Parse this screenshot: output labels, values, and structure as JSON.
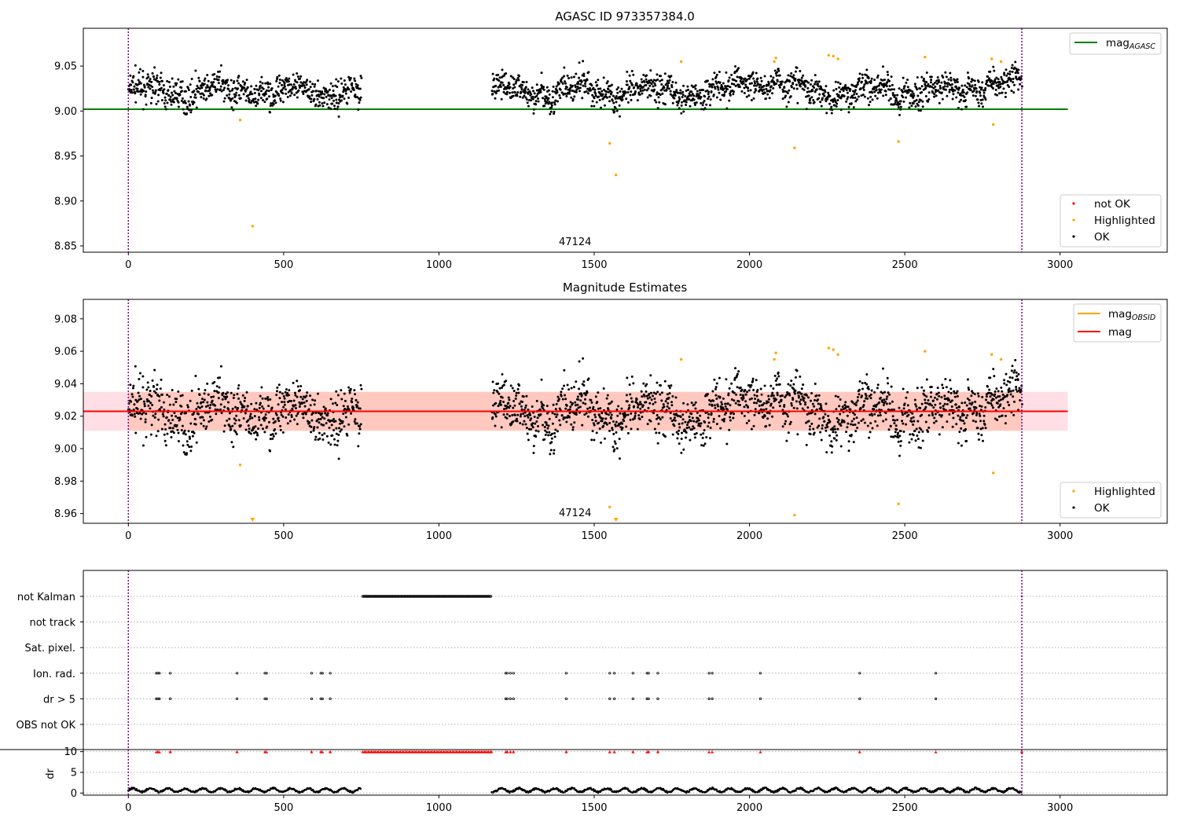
{
  "chart_data": [
    {
      "type": "scatter",
      "title": "AGASC ID 973357384.0",
      "xlim": [
        -145,
        3345
      ],
      "ylim": [
        8.843,
        9.092
      ],
      "xticks": [
        "0",
        "500",
        "1000",
        "1500",
        "2000",
        "2500",
        "3000"
      ],
      "yticks": [
        "8.85",
        "8.90",
        "8.95",
        "9.00",
        "9.05"
      ],
      "annotation": "47124",
      "vlines": [
        0,
        2877
      ],
      "lines": [
        {
          "name": "mag_AGASC",
          "color": "#008000",
          "x": [
            -145,
            3025
          ],
          "y": 9.002
        }
      ],
      "series": [
        {
          "name": "not OK",
          "color": "#ff0000",
          "points": []
        },
        {
          "name": "Highlighted",
          "color": "#ffa500",
          "points": [
            [
              360,
              8.99
            ],
            [
              400,
              8.872
            ],
            [
              1550,
              8.964
            ],
            [
              1570,
              8.929
            ],
            [
              1780,
              9.055
            ],
            [
              2080,
              9.055
            ],
            [
              2085,
              9.059
            ],
            [
              2145,
              8.959
            ],
            [
              2255,
              9.062
            ],
            [
              2270,
              9.061
            ],
            [
              2285,
              9.058
            ],
            [
              2480,
              8.966
            ],
            [
              2565,
              9.06
            ],
            [
              2780,
              9.058
            ],
            [
              2785,
              8.985
            ],
            [
              2810,
              9.055
            ]
          ]
        },
        {
          "name": "OK",
          "color": "#000000",
          "generated_ranges": [
            [
              0,
              750
            ],
            [
              1170,
              2877
            ]
          ],
          "center": 9.022
        }
      ],
      "legends": {
        "line_legend": [
          "mag_AGASC"
        ],
        "point_legend": [
          "not OK",
          "Highlighted",
          "OK"
        ]
      }
    },
    {
      "type": "scatter",
      "title": "Magnitude Estimates",
      "xlim": [
        -145,
        3345
      ],
      "ylim": [
        8.954,
        9.092
      ],
      "xticks": [
        "0",
        "500",
        "1000",
        "1500",
        "2000",
        "2500",
        "3000"
      ],
      "yticks": [
        "8.96",
        "8.98",
        "9.00",
        "9.02",
        "9.04",
        "9.06",
        "9.08"
      ],
      "annotation": "47124",
      "vlines": [
        0,
        2877
      ],
      "mag": 9.023,
      "mag_band": [
        9.011,
        9.035
      ],
      "mag_obsid_band": [
        9.011,
        9.035
      ],
      "lines": [
        {
          "name": "mag_OBSID",
          "color": "#ffa500"
        },
        {
          "name": "mag",
          "color": "#ff0000"
        }
      ],
      "series": [
        {
          "name": "Highlighted",
          "color": "#ffa500",
          "points": [
            [
              360,
              8.99
            ],
            [
              1550,
              8.964
            ],
            [
              1780,
              9.055
            ],
            [
              2080,
              9.055
            ],
            [
              2085,
              9.059
            ],
            [
              2145,
              8.959
            ],
            [
              2255,
              9.062
            ],
            [
              2270,
              9.061
            ],
            [
              2285,
              9.058
            ],
            [
              2480,
              8.966
            ],
            [
              2565,
              9.06
            ],
            [
              2780,
              9.058
            ],
            [
              2785,
              8.985
            ],
            [
              2810,
              9.055
            ]
          ]
        },
        {
          "name": "OK",
          "color": "#000000",
          "generated_ranges": [
            [
              0,
              750
            ],
            [
              1170,
              2877
            ]
          ],
          "center": 9.022
        }
      ],
      "legends": {
        "line_legend": [
          "mag_OBSID",
          "mag"
        ],
        "point_legend": [
          "Highlighted",
          "OK"
        ]
      }
    },
    {
      "type": "scatter",
      "title": "",
      "xlim": [
        -145,
        3345
      ],
      "categories": [
        "not Kalman",
        "not track",
        "Sat. pixel.",
        "Ion. rad.",
        "dr > 5",
        "OBS not OK"
      ],
      "flags": {
        "not Kalman": [
          [
            755,
            1170
          ]
        ],
        "Ion. rad.": [
          90,
          95,
          100,
          135,
          350,
          440,
          445,
          590,
          620,
          625,
          650,
          1215,
          1220,
          1230,
          1240,
          1410,
          1550,
          1565,
          1625,
          1670,
          1675,
          1705,
          1870,
          1880,
          2035,
          2355,
          2600
        ],
        "dr > 5": [
          90,
          95,
          100,
          135,
          350,
          440,
          445,
          590,
          620,
          625,
          650,
          1215,
          1220,
          1230,
          1240,
          1410,
          1550,
          1565,
          1625,
          1670,
          1675,
          1705,
          1870,
          1880,
          2035,
          2355,
          2600
        ]
      },
      "dr": {
        "ylabel": "dr",
        "yticks": [
          "0",
          "5",
          "10"
        ],
        "ylim": [
          -0.5,
          10.5
        ],
        "ranges": [
          [
            0,
            750
          ],
          [
            1170,
            2877
          ]
        ],
        "typical": 0.7,
        "capped_value": 10
      },
      "xticks": [
        "0",
        "500",
        "1000",
        "1500",
        "2000",
        "2500",
        "3000"
      ],
      "vlines": [
        0,
        2877
      ]
    }
  ]
}
